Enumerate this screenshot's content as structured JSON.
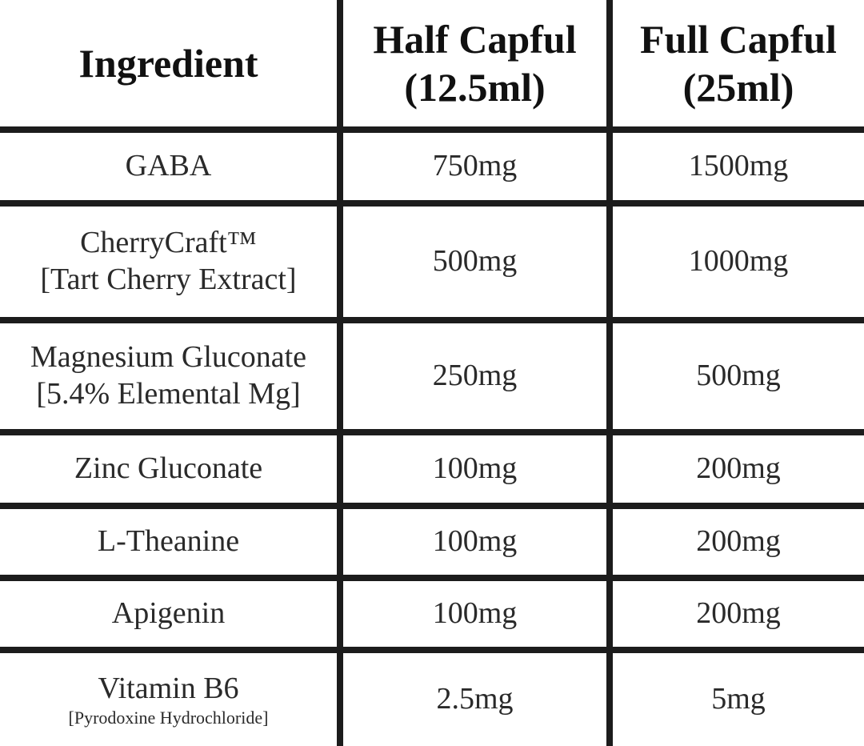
{
  "table": {
    "header": [
      {
        "lines": [
          "Ingredient"
        ]
      },
      {
        "lines": [
          "Half Capful",
          "(12.5ml)"
        ]
      },
      {
        "lines": [
          "Full Capful",
          "(25ml)"
        ]
      }
    ],
    "rows": [
      {
        "ingredient": [
          "GABA"
        ],
        "half": "750mg",
        "full": "1500mg"
      },
      {
        "ingredient": [
          "CherryCraft™",
          "[Tart Cherry Extract]"
        ],
        "half": "500mg",
        "full": "1000mg"
      },
      {
        "ingredient": [
          "Magnesium Gluconate",
          "[5.4% Elemental Mg]"
        ],
        "half": "250mg",
        "full": "500mg"
      },
      {
        "ingredient": [
          "Zinc Gluconate"
        ],
        "half": "100mg",
        "full": "200mg"
      },
      {
        "ingredient": [
          "L-Theanine"
        ],
        "half": "100mg",
        "full": "200mg"
      },
      {
        "ingredient": [
          "Apigenin"
        ],
        "half": "100mg",
        "full": "200mg"
      },
      {
        "ingredient": [
          "Vitamin B6",
          "[Pyrodoxine Hydrochloride]"
        ],
        "half": "2.5mg",
        "full": "5mg"
      }
    ]
  }
}
